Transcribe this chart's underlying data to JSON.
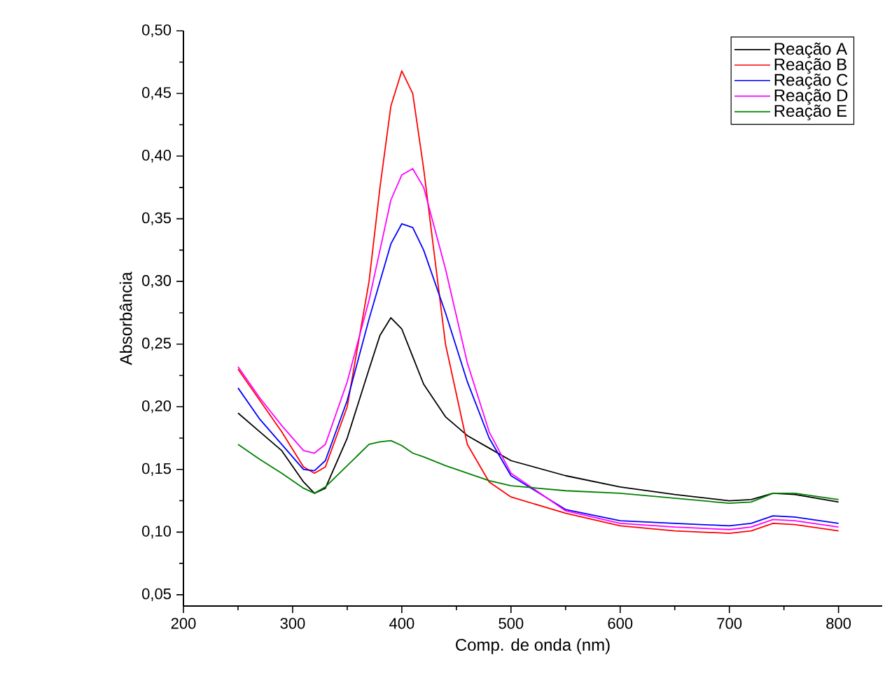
{
  "chart_data": {
    "type": "line",
    "xlabel": "Comp. de onda (nm)",
    "ylabel": "Absorbância",
    "x": [
      250,
      270,
      290,
      310,
      320,
      330,
      350,
      370,
      380,
      390,
      400,
      410,
      420,
      440,
      460,
      480,
      500,
      550,
      600,
      650,
      700,
      720,
      740,
      760,
      800
    ],
    "xlim": [
      200,
      840
    ],
    "xticks": [
      200,
      300,
      400,
      500,
      600,
      700,
      800
    ],
    "ylim": [
      0.041,
      0.5
    ],
    "yticks": [
      {
        "value": 0.05,
        "label": "0,05"
      },
      {
        "value": 0.1,
        "label": "0,10"
      },
      {
        "value": 0.15,
        "label": "0,15"
      },
      {
        "value": 0.2,
        "label": "0,20"
      },
      {
        "value": 0.25,
        "label": "0,25"
      },
      {
        "value": 0.3,
        "label": "0,30"
      },
      {
        "value": 0.35,
        "label": "0,35"
      },
      {
        "value": 0.4,
        "label": "0,40"
      },
      {
        "value": 0.45,
        "label": "0,45"
      },
      {
        "value": 0.5,
        "label": "0,50"
      }
    ],
    "grid": false,
    "legend": "top right",
    "marker": "none",
    "line_style": "solid",
    "series": [
      {
        "name": "Reação A",
        "color": "#000000",
        "values": [
          0.195,
          0.18,
          0.165,
          0.14,
          0.131,
          0.135,
          0.175,
          0.23,
          0.257,
          0.271,
          0.262,
          0.24,
          0.218,
          0.192,
          0.177,
          0.167,
          0.157,
          0.145,
          0.136,
          0.13,
          0.125,
          0.126,
          0.131,
          0.13,
          0.124
        ]
      },
      {
        "name": "Reação B",
        "color": "#ff0000",
        "values": [
          0.23,
          0.205,
          0.18,
          0.152,
          0.147,
          0.152,
          0.2,
          0.3,
          0.375,
          0.44,
          0.468,
          0.45,
          0.39,
          0.25,
          0.17,
          0.14,
          0.128,
          0.115,
          0.105,
          0.101,
          0.099,
          0.101,
          0.107,
          0.106,
          0.101
        ]
      },
      {
        "name": "Reação C",
        "color": "#0000ff",
        "values": [
          0.215,
          0.19,
          0.17,
          0.15,
          0.149,
          0.157,
          0.205,
          0.27,
          0.3,
          0.33,
          0.346,
          0.343,
          0.325,
          0.275,
          0.22,
          0.175,
          0.145,
          0.118,
          0.109,
          0.107,
          0.105,
          0.107,
          0.113,
          0.112,
          0.107
        ]
      },
      {
        "name": "Reação D",
        "color": "#ff00ff",
        "values": [
          0.232,
          0.207,
          0.185,
          0.165,
          0.163,
          0.17,
          0.22,
          0.285,
          0.325,
          0.365,
          0.385,
          0.39,
          0.375,
          0.31,
          0.235,
          0.18,
          0.147,
          0.117,
          0.107,
          0.104,
          0.102,
          0.104,
          0.11,
          0.109,
          0.104
        ]
      },
      {
        "name": "Reação E",
        "color": "#008000",
        "values": [
          0.17,
          0.158,
          0.147,
          0.135,
          0.131,
          0.136,
          0.153,
          0.17,
          0.172,
          0.173,
          0.169,
          0.163,
          0.16,
          0.153,
          0.147,
          0.141,
          0.137,
          0.133,
          0.131,
          0.127,
          0.123,
          0.124,
          0.131,
          0.131,
          0.126
        ]
      }
    ]
  }
}
